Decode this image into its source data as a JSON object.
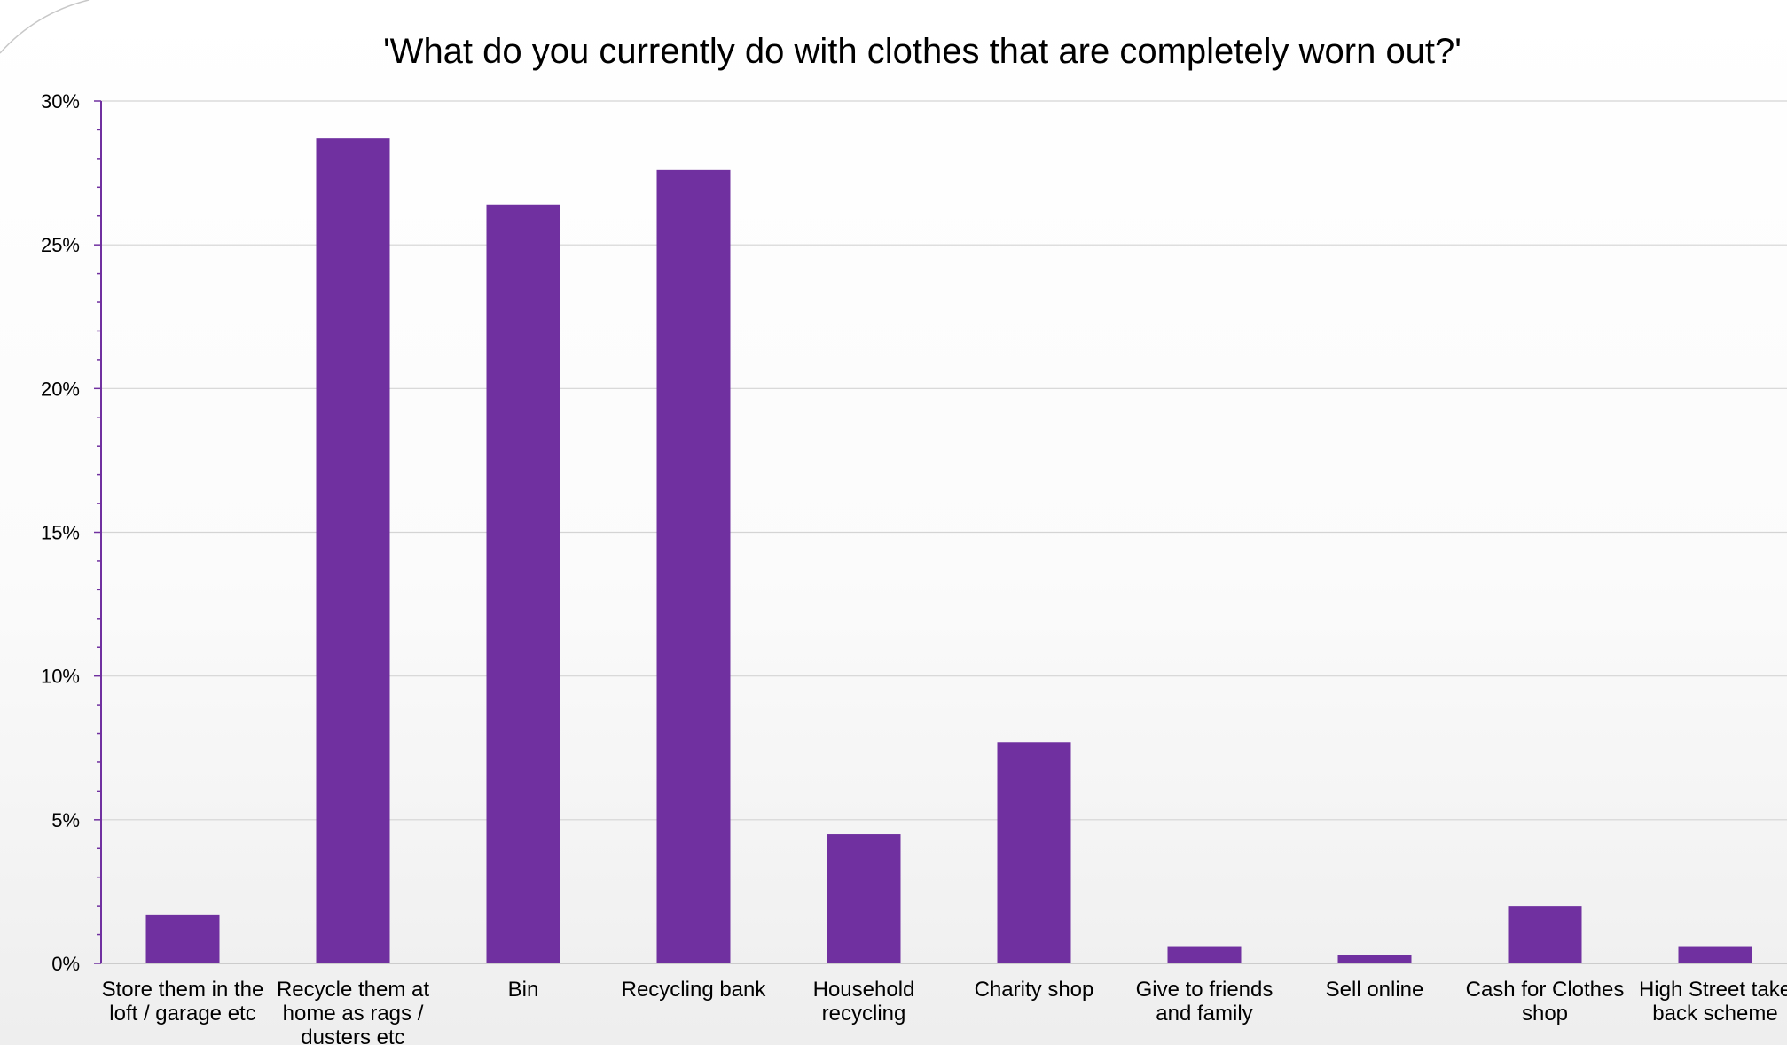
{
  "colors": {
    "bar": "#7030A0",
    "axis": "#7030A0",
    "grid": "#d4d4d4"
  },
  "chart_data": {
    "type": "bar",
    "title": "'What do you currently do with clothes that are completely worn out?'",
    "xlabel": "",
    "ylabel": "",
    "ylim": [
      0,
      30
    ],
    "yticks": [
      {
        "value": 0,
        "label": "0%"
      },
      {
        "value": 5,
        "label": "5%"
      },
      {
        "value": 10,
        "label": "10%"
      },
      {
        "value": 15,
        "label": "15%"
      },
      {
        "value": 20,
        "label": "20%"
      },
      {
        "value": 25,
        "label": "25%"
      },
      {
        "value": 30,
        "label": "30%"
      }
    ],
    "grid": true,
    "legend": "none",
    "categories": [
      [
        "Store them in the",
        "loft / garage etc"
      ],
      [
        "Recycle them at",
        "home as rags /",
        "dusters etc"
      ],
      [
        "Bin"
      ],
      [
        "Recycling bank"
      ],
      [
        "Household",
        "recycling"
      ],
      [
        "Charity shop"
      ],
      [
        "Give to friends",
        "and family"
      ],
      [
        "Sell online"
      ],
      [
        "Cash for Clothes",
        "shop"
      ],
      [
        "High Street take",
        "back scheme"
      ]
    ],
    "values": [
      1.7,
      28.7,
      26.4,
      27.6,
      4.5,
      7.7,
      0.6,
      0.3,
      2.0,
      0.6
    ]
  }
}
